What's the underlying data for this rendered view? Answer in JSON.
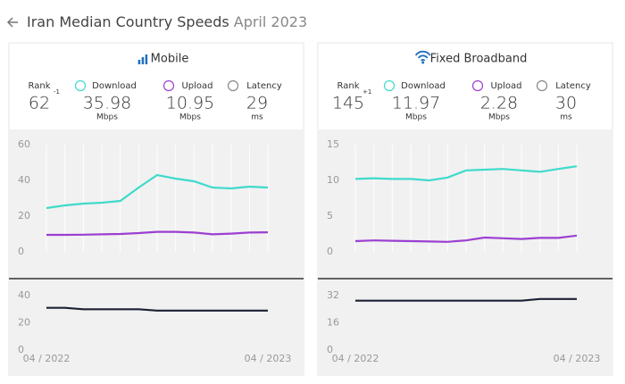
{
  "header": {
    "title": "Iran Median Country Speeds",
    "date": "April 2023"
  },
  "panels": [
    {
      "title": "Mobile",
      "stats": [
        {
          "label": "Rank",
          "value": "62",
          "change": "-1"
        },
        {
          "label": "Download",
          "value": "35.98",
          "unit": "Mbps"
        },
        {
          "label": "Upload",
          "value": "10.95",
          "unit": "Mbps"
        },
        {
          "label": "Latency",
          "value": "29",
          "unit": "ms"
        }
      ]
    },
    {
      "title": "Fixed Broadband",
      "stats": [
        {
          "label": "Rank",
          "value": "145",
          "change": "+1"
        },
        {
          "label": "Download",
          "value": "11.97",
          "unit": "Mbps"
        },
        {
          "label": "Upload",
          "value": "2.28",
          "unit": "Mbps"
        },
        {
          "label": "Latency",
          "value": "30",
          "unit": "ms"
        }
      ]
    }
  ],
  "chart_data": [
    {
      "type": "line",
      "ylim": [
        0,
        60
      ],
      "yticks": [
        0,
        20,
        40,
        60
      ],
      "grid": "x",
      "series": [
        {
          "name": "Download",
          "color": "#3fdacb",
          "values": [
            24.5,
            26,
            27,
            27.5,
            28.5,
            36,
            43,
            41,
            39.5,
            36,
            35.5,
            36.5,
            36
          ]
        },
        {
          "name": "Upload",
          "color": "#9c3fd1",
          "values": [
            9.5,
            9.5,
            9.6,
            9.8,
            10,
            10.5,
            11.2,
            11.2,
            10.8,
            9.8,
            10.2,
            10.8,
            10.95
          ]
        }
      ]
    },
    {
      "type": "line",
      "ylim": [
        0,
        40
      ],
      "yticks": [
        0,
        20,
        40
      ],
      "categories": [
        "04 / 2022",
        null,
        null,
        null,
        null,
        null,
        null,
        null,
        null,
        null,
        null,
        null,
        "04 / 2023"
      ],
      "series": [
        {
          "name": "Latency",
          "color": "#1d2134",
          "values": [
            31,
            31,
            30,
            30,
            30,
            30,
            29,
            29,
            29,
            29,
            29,
            29,
            29
          ]
        }
      ]
    },
    {
      "type": "line",
      "ylim": [
        0,
        15
      ],
      "yticks": [
        0,
        5,
        10,
        15
      ],
      "grid": "x",
      "series": [
        {
          "name": "Download",
          "color": "#3fdacb",
          "values": [
            10.2,
            10.3,
            10.2,
            10.2,
            10.0,
            10.4,
            11.4,
            11.5,
            11.6,
            11.4,
            11.2,
            11.6,
            11.97
          ]
        },
        {
          "name": "Upload",
          "color": "#9c3fd1",
          "values": [
            1.5,
            1.6,
            1.55,
            1.5,
            1.45,
            1.4,
            1.6,
            2.0,
            1.9,
            1.8,
            1.95,
            1.95,
            2.28
          ]
        }
      ]
    },
    {
      "type": "line",
      "ylim": [
        0,
        32
      ],
      "yticks": [
        0,
        16,
        32
      ],
      "categories": [
        "04 / 2022",
        null,
        null,
        null,
        null,
        null,
        null,
        null,
        null,
        null,
        null,
        null,
        "04 / 2023"
      ],
      "series": [
        {
          "name": "Latency",
          "color": "#1d2134",
          "values": [
            29,
            29,
            29,
            29,
            29,
            29,
            29,
            29,
            29,
            29,
            30,
            30,
            30
          ]
        }
      ]
    }
  ]
}
